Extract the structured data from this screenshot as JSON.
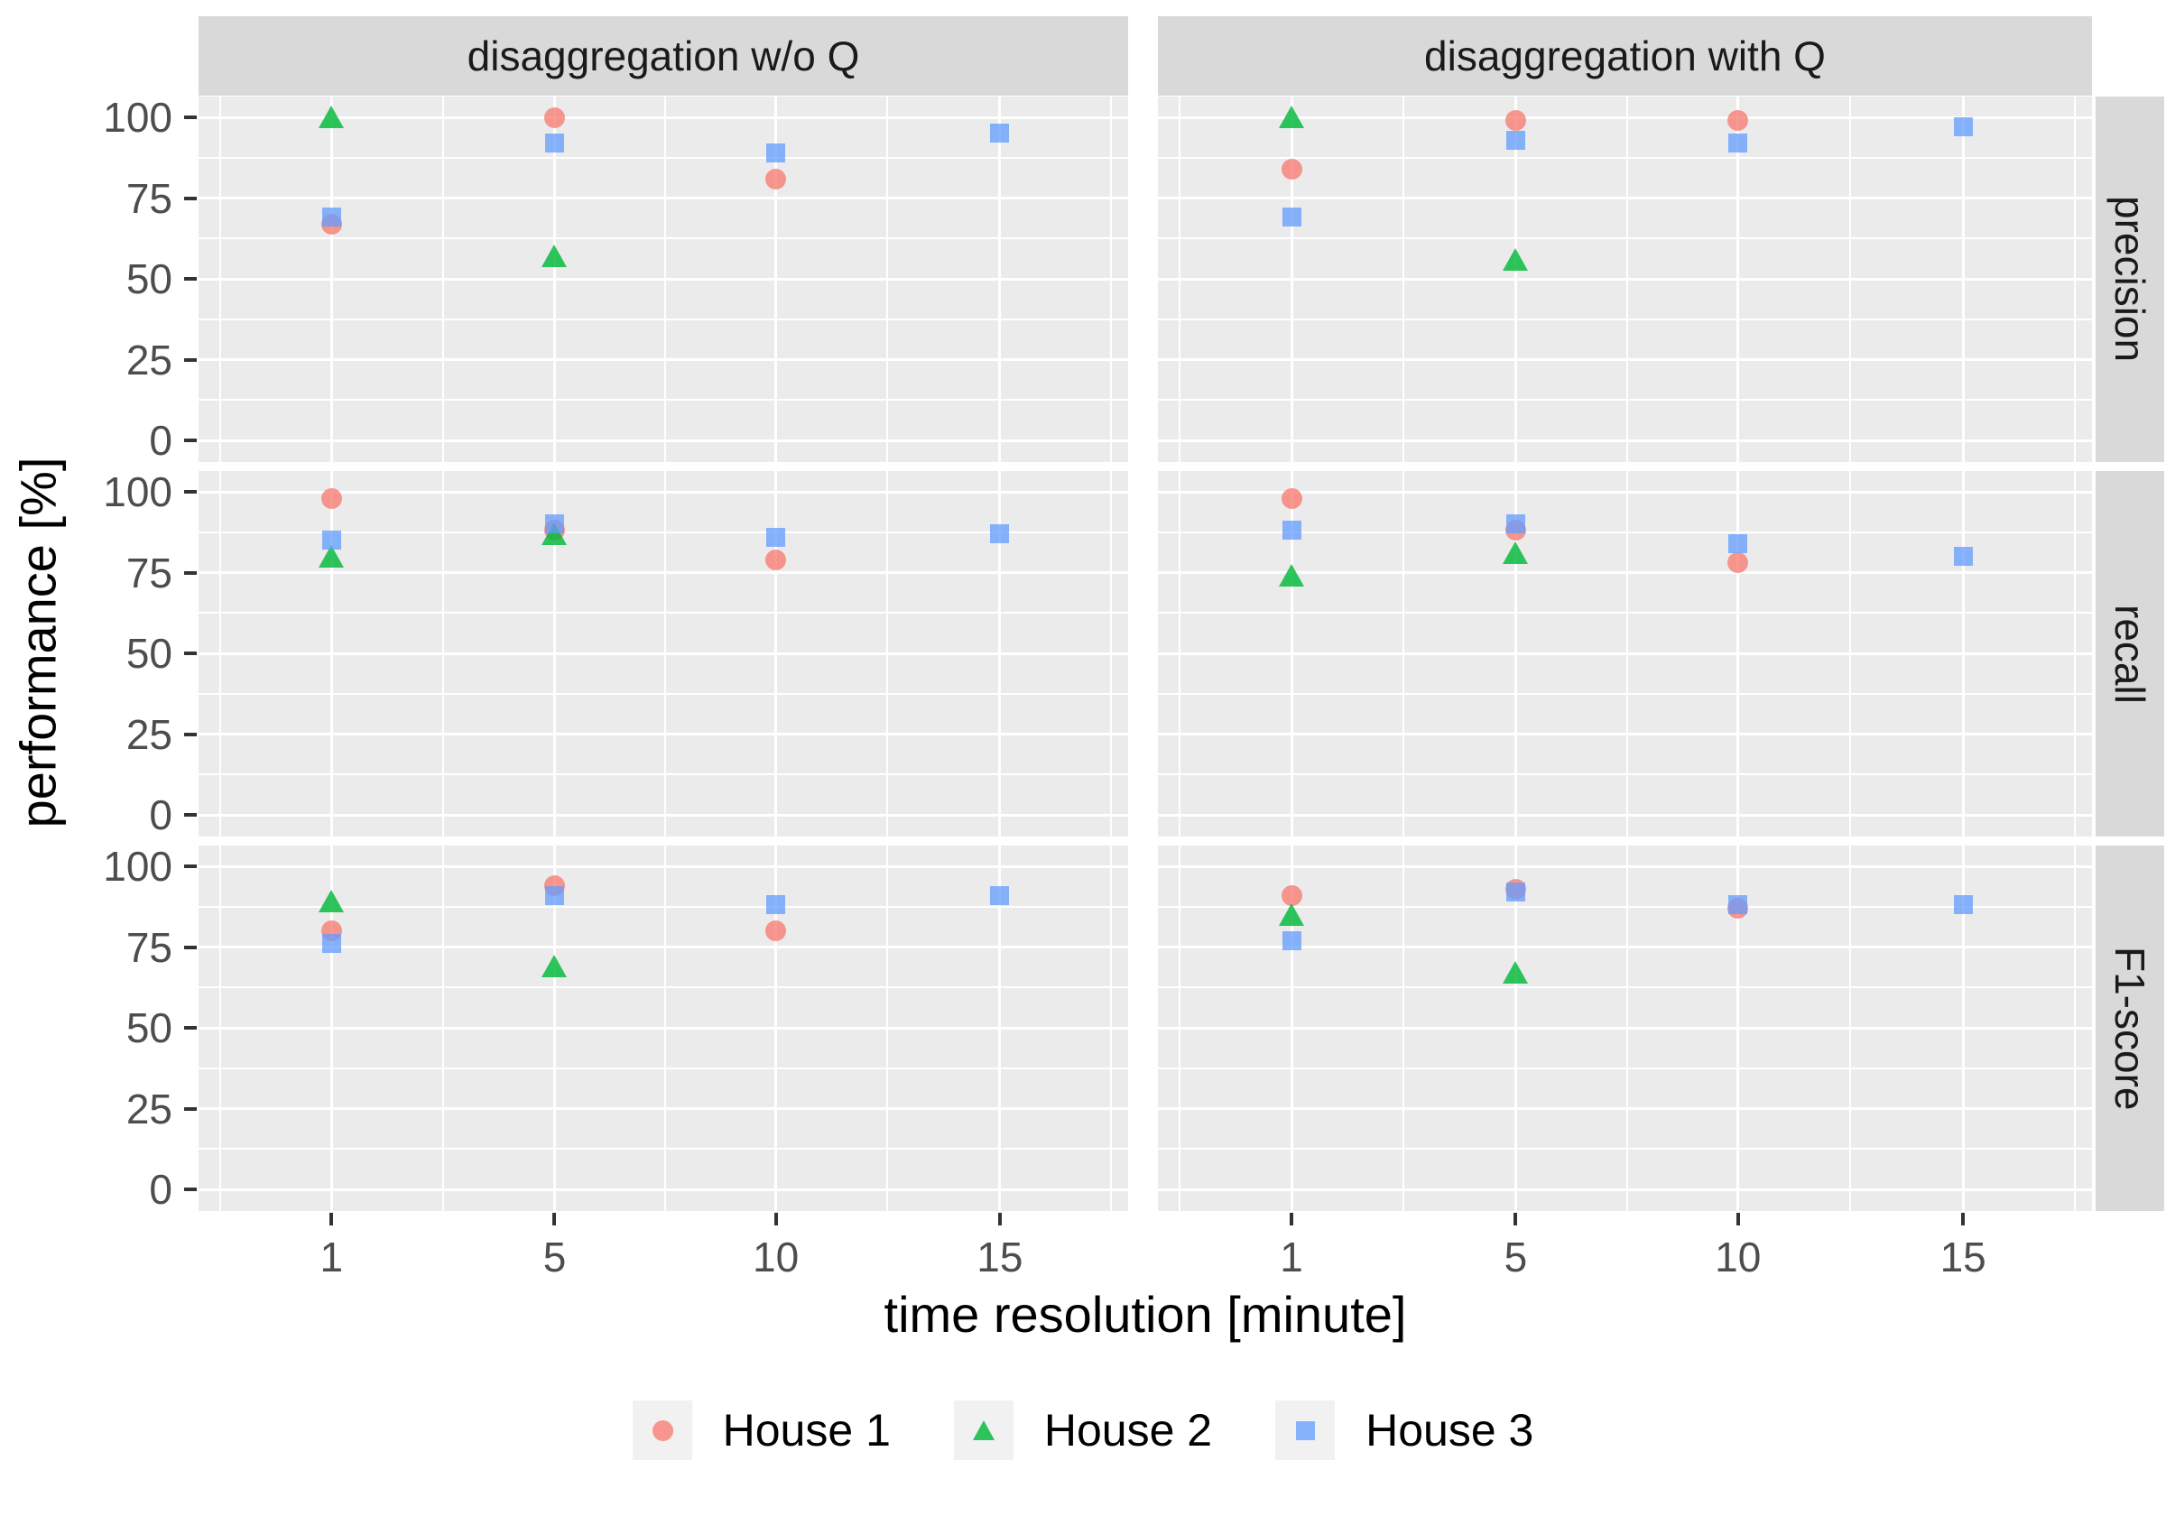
{
  "chart_data": {
    "type": "scatter",
    "title": "",
    "xlabel": "time resolution [minute]",
    "ylabel": "performance [%]",
    "x": [
      1,
      5,
      10,
      15
    ],
    "x_tick_labels": [
      "1",
      "5",
      "10",
      "15"
    ],
    "y_ticks": [
      0,
      25,
      50,
      75,
      100
    ],
    "y_tick_labels": [
      "0",
      "25",
      "50",
      "75",
      "100"
    ],
    "ylim": [
      0,
      100
    ],
    "grid": "on",
    "legend_position": "bottom",
    "col_facets": [
      "disaggregation w/o Q",
      "disaggregation with Q"
    ],
    "row_facets": [
      "precision",
      "recall",
      "F1-score"
    ],
    "series": [
      {
        "name": "House 1",
        "marker": "circle",
        "color": "#f8766d"
      },
      {
        "name": "House 2",
        "marker": "triangle",
        "color": "#00ba38"
      },
      {
        "name": "House 3",
        "marker": "square",
        "color": "#619cff"
      }
    ],
    "panels": [
      {
        "row": "precision",
        "col": "disaggregation w/o Q",
        "series_values": [
          [
            67,
            100,
            81,
            null
          ],
          [
            100,
            57,
            null,
            null
          ],
          [
            69,
            92,
            89,
            95
          ]
        ]
      },
      {
        "row": "precision",
        "col": "disaggregation with Q",
        "series_values": [
          [
            84,
            99,
            99,
            null
          ],
          [
            100,
            56,
            null,
            null
          ],
          [
            69,
            93,
            92,
            97
          ]
        ]
      },
      {
        "row": "recall",
        "col": "disaggregation w/o Q",
        "series_values": [
          [
            98,
            88,
            79,
            null
          ],
          [
            80,
            87,
            null,
            null
          ],
          [
            85,
            90,
            86,
            87
          ]
        ]
      },
      {
        "row": "recall",
        "col": "disaggregation with Q",
        "series_values": [
          [
            98,
            88,
            78,
            null
          ],
          [
            74,
            81,
            null,
            null
          ],
          [
            88,
            90,
            84,
            80
          ]
        ]
      },
      {
        "row": "F1-score",
        "col": "disaggregation w/o Q",
        "series_values": [
          [
            80,
            94,
            80,
            null
          ],
          [
            89,
            69,
            null,
            null
          ],
          [
            76,
            91,
            88,
            91
          ]
        ]
      },
      {
        "row": "F1-score",
        "col": "disaggregation with Q",
        "series_values": [
          [
            91,
            93,
            87,
            null
          ],
          [
            85,
            67,
            null,
            null
          ],
          [
            77,
            92,
            88,
            88
          ]
        ]
      }
    ]
  }
}
